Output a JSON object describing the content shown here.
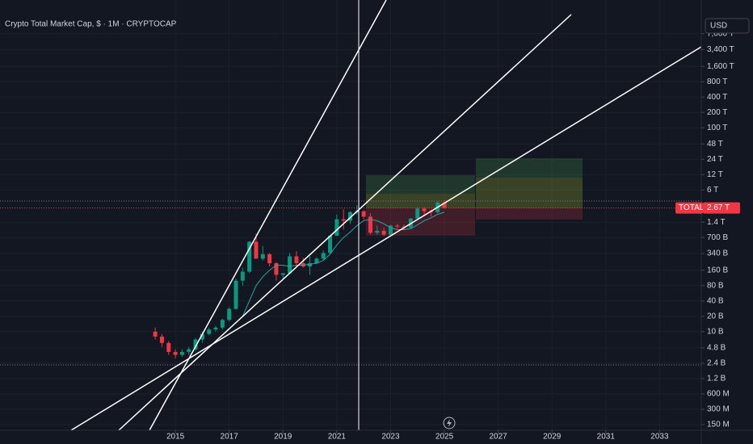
{
  "chart_data": {
    "type": "candlestick",
    "title": "Crypto Total Market Cap, $ · 1M · CRYPTOCAP",
    "currency": "USD",
    "symbol": "TOTAL",
    "last_value": 2670,
    "last_value_label": "2.67 T",
    "log_scale": true,
    "grid": true,
    "colors": {
      "up": "#089981",
      "down": "#f23645",
      "moving_average": "#2aa6a0"
    },
    "x": [
      2014.25,
      2014.5,
      2014.75,
      2015.0,
      2015.25,
      2015.5,
      2015.75,
      2016.0,
      2016.25,
      2016.5,
      2016.75,
      2017.0,
      2017.25,
      2017.5,
      2017.75,
      2018.0,
      2018.25,
      2018.5,
      2018.75,
      2019.0,
      2019.25,
      2019.5,
      2019.75,
      2020.0,
      2020.25,
      2020.5,
      2020.75,
      2021.0,
      2021.25,
      2021.5,
      2021.75,
      2022.0,
      2022.25,
      2022.5,
      2022.75,
      2023.0,
      2023.25,
      2023.5,
      2023.75,
      2024.0,
      2024.25,
      2024.5,
      2024.75,
      2025.0
    ],
    "open": [
      10,
      8,
      6,
      4,
      3.5,
      4,
      4.5,
      7,
      9,
      11,
      12,
      17,
      28,
      100,
      150,
      580,
      270,
      330,
      220,
      130,
      140,
      300,
      220,
      190,
      220,
      270,
      350,
      760,
      1600,
      1500,
      2200,
      2300,
      1800,
      870,
      950,
      800,
      1200,
      1150,
      1100,
      1650,
      2600,
      2300,
      2200,
      3400
    ],
    "high": [
      12,
      9,
      6.5,
      4.5,
      4.5,
      5,
      7.5,
      10,
      12,
      13,
      18,
      30,
      110,
      180,
      600,
      830,
      480,
      350,
      230,
      140,
      350,
      380,
      280,
      300,
      290,
      390,
      780,
      2000,
      2500,
      2300,
      3000,
      2400,
      2100,
      1200,
      1100,
      1250,
      1300,
      1250,
      1700,
      2800,
      2750,
      2500,
      3600,
      3700
    ],
    "low": [
      7,
      5,
      3.5,
      3,
      3.2,
      3.5,
      4.2,
      6,
      8.5,
      10,
      11,
      16,
      27,
      80,
      140,
      300,
      250,
      190,
      100,
      110,
      135,
      190,
      180,
      130,
      210,
      260,
      340,
      750,
      1000,
      1300,
      2000,
      1600,
      800,
      800,
      750,
      780,
      1050,
      1000,
      1050,
      1600,
      2000,
      1800,
      2100,
      2600
    ],
    "close": [
      8,
      6,
      4,
      3.5,
      4,
      4.5,
      7,
      9,
      11,
      12,
      17,
      28,
      100,
      150,
      580,
      270,
      330,
      220,
      130,
      140,
      300,
      220,
      190,
      220,
      270,
      350,
      760,
      1600,
      1500,
      2200,
      2300,
      1800,
      870,
      950,
      800,
      1200,
      1150,
      1100,
      1650,
      2600,
      2300,
      2200,
      3400,
      2670
    ],
    "moving_average": [
      null,
      null,
      null,
      null,
      null,
      null,
      null,
      null,
      null,
      null,
      null,
      null,
      null,
      20,
      40,
      80,
      120,
      160,
      200,
      200,
      190,
      200,
      200,
      210,
      220,
      250,
      330,
      500,
      700,
      900,
      1200,
      1500,
      1600,
      1500,
      1300,
      1100,
      1000,
      1000,
      1050,
      1250,
      1500,
      1700,
      2000,
      2200
    ],
    "xlim": [
      2008.48,
      2034.55
    ],
    "xticks": [
      2015,
      2017,
      2019,
      2021,
      2023,
      2025,
      2027,
      2029,
      2031,
      2033
    ],
    "ylim": [
      0.09,
      32000000
    ],
    "yticks": [
      {
        "value": 7000000,
        "label": "7,000 T"
      },
      {
        "value": 3400000,
        "label": "3,400 T"
      },
      {
        "value": 1600000,
        "label": "1,600 T"
      },
      {
        "value": 800000,
        "label": "800 T"
      },
      {
        "value": 400000,
        "label": "400 T"
      },
      {
        "value": 200000,
        "label": "200 T"
      },
      {
        "value": 100000,
        "label": "100 T"
      },
      {
        "value": 48000,
        "label": "48 T"
      },
      {
        "value": 24000,
        "label": "24 T"
      },
      {
        "value": 12000,
        "label": "12 T"
      },
      {
        "value": 6000,
        "label": "6 T"
      },
      {
        "value": 1400,
        "label": "1.4 T"
      },
      {
        "value": 700,
        "label": "700 B"
      },
      {
        "value": 340,
        "label": "340 B"
      },
      {
        "value": 160,
        "label": "160 B"
      },
      {
        "value": 80,
        "label": "80 B"
      },
      {
        "value": 40,
        "label": "40 B"
      },
      {
        "value": 20,
        "label": "20 B"
      },
      {
        "value": 10,
        "label": "10 B"
      },
      {
        "value": 4.8,
        "label": "4.8 B"
      },
      {
        "value": 2.4,
        "label": "2.4 B"
      },
      {
        "value": 1.2,
        "label": "1.2 B"
      },
      {
        "value": 0.6,
        "label": "600 M"
      },
      {
        "value": 0.3,
        "label": "300 M"
      },
      {
        "value": 0.15,
        "label": "150 M"
      }
    ]
  }
}
